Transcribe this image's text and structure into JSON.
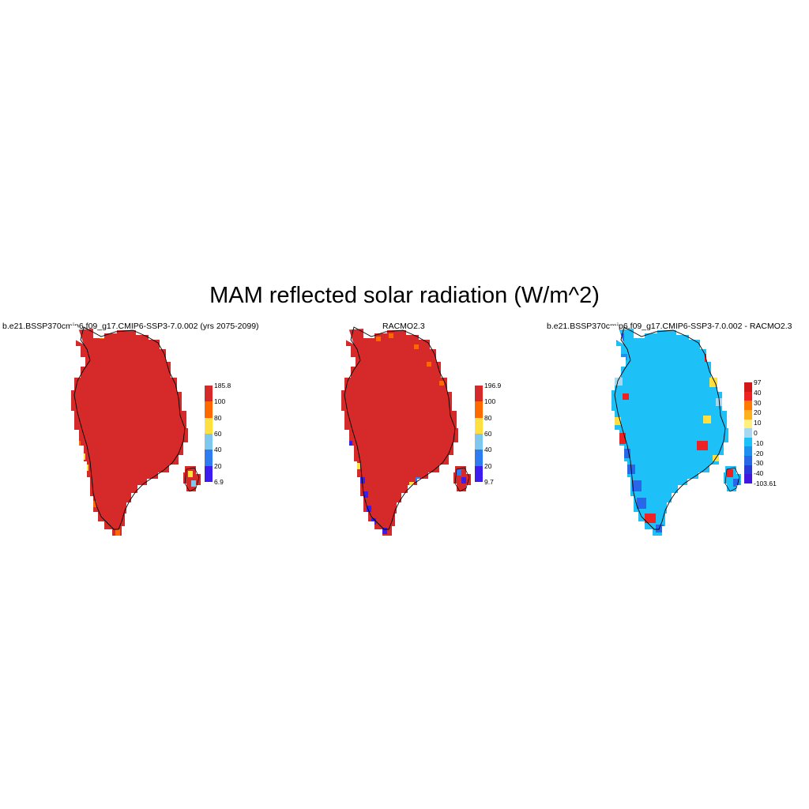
{
  "figure": {
    "title": "MAM reflected solar radiation (W/m^2)"
  },
  "panels": [
    {
      "id": "model",
      "title": "b.e21.BSSP370cmip6.f09_g17.CMIP6-SSP3-7.0.002 (yrs 2075-2099)",
      "colorbar": {
        "labels": [
          "185.8",
          "100",
          "80",
          "60",
          "40",
          "20",
          "6.9"
        ],
        "colors": [
          "#d62a2a",
          "#ff6a00",
          "#ffe040",
          "#7ec8f0",
          "#2e7cf0",
          "#3d1cf0"
        ]
      },
      "field": {
        "interior_color": "#d62a2a",
        "coastal_colors": [
          "#ff6a00",
          "#ffe040",
          "#7ec8f0",
          "#2e7cf0"
        ]
      }
    },
    {
      "id": "obs",
      "title": "RACMO2.3",
      "colorbar": {
        "labels": [
          "196.9",
          "100",
          "80",
          "60",
          "40",
          "20",
          "9.7"
        ],
        "colors": [
          "#d62a2a",
          "#ff6a00",
          "#ffe040",
          "#7ec8f0",
          "#2e7cf0",
          "#3d1cf0"
        ]
      },
      "field": {
        "interior_color": "#d62a2a",
        "coastal_colors": [
          "#ff6a00",
          "#3d1cf0",
          "#2e7cf0",
          "#ffe040"
        ]
      }
    },
    {
      "id": "diff",
      "title": "b.e21.BSSP370cmip6.f09_g17.CMIP6-SSP3-7.0.002 - RACMO2.3",
      "colorbar": {
        "labels": [
          "97",
          "40",
          "30",
          "20",
          "10",
          "0",
          "-10",
          "-20",
          "-30",
          "-40",
          "-103.61"
        ],
        "colors": [
          "#d01818",
          "#ee2222",
          "#ff7a00",
          "#ffb020",
          "#fff080",
          "#a8d8f0",
          "#1ec0f8",
          "#2090f0",
          "#2868e8",
          "#2a3ad8",
          "#4018e0"
        ]
      },
      "field": {
        "interior_color": "#1ec0f8",
        "coastal_colors": [
          "#2090f0",
          "#2868e8",
          "#ee2222",
          "#a8d8f0",
          "#ffe040"
        ]
      }
    }
  ]
}
